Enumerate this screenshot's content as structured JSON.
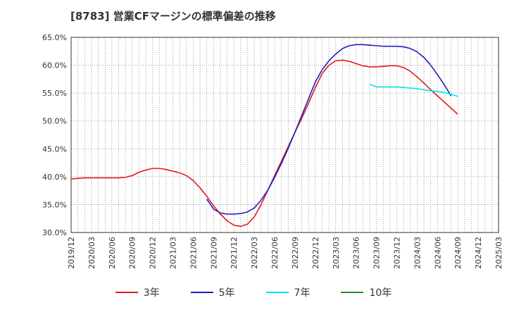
{
  "chart_data": {
    "type": "line",
    "title": "[8783]  営業CFマージンの標準偏差の推移",
    "xlabel": "",
    "ylabel": "",
    "ylim": [
      30,
      65
    ],
    "yticks": [
      "65.0%",
      "60.0%",
      "55.0%",
      "50.0%",
      "45.0%",
      "40.0%",
      "35.0%",
      "30.0%"
    ],
    "ytick_values": [
      65,
      60,
      55,
      50,
      45,
      40,
      35,
      30
    ],
    "x_start": "2019/12",
    "xticks": [
      "2019/12",
      "2020/03",
      "2020/06",
      "2020/09",
      "2020/12",
      "2021/03",
      "2021/06",
      "2021/09",
      "2021/12",
      "2022/03",
      "2022/06",
      "2022/09",
      "2022/12",
      "2023/03",
      "2023/06",
      "2023/09",
      "2023/12",
      "2024/03",
      "2024/06",
      "2024/09",
      "2024/12",
      "2025/03"
    ],
    "grid": true,
    "legend_position": "bottom",
    "series": [
      {
        "name": "3年",
        "color": "#e31a1c",
        "points": [
          [
            "2019/12",
            39.6
          ],
          [
            "2020/01",
            39.7
          ],
          [
            "2020/02",
            39.8
          ],
          [
            "2020/03",
            39.8
          ],
          [
            "2020/04",
            39.8
          ],
          [
            "2020/05",
            39.8
          ],
          [
            "2020/06",
            39.8
          ],
          [
            "2020/07",
            39.8
          ],
          [
            "2020/08",
            39.9
          ],
          [
            "2020/09",
            40.2
          ],
          [
            "2020/10",
            40.8
          ],
          [
            "2020/11",
            41.2
          ],
          [
            "2020/12",
            41.5
          ],
          [
            "2021/01",
            41.5
          ],
          [
            "2021/02",
            41.3
          ],
          [
            "2021/03",
            41.0
          ],
          [
            "2021/04",
            40.7
          ],
          [
            "2021/05",
            40.2
          ],
          [
            "2021/06",
            39.3
          ],
          [
            "2021/07",
            38.0
          ],
          [
            "2021/08",
            36.5
          ],
          [
            "2021/09",
            34.8
          ],
          [
            "2021/10",
            33.3
          ],
          [
            "2021/11",
            32.1
          ],
          [
            "2021/12",
            31.3
          ],
          [
            "2022/01",
            31.1
          ],
          [
            "2022/02",
            31.5
          ],
          [
            "2022/03",
            32.8
          ],
          [
            "2022/04",
            35.0
          ],
          [
            "2022/05",
            37.6
          ],
          [
            "2022/06",
            40.2
          ],
          [
            "2022/07",
            42.8
          ],
          [
            "2022/08",
            45.4
          ],
          [
            "2022/09",
            48.0
          ],
          [
            "2022/10",
            50.5
          ],
          [
            "2022/11",
            53.2
          ],
          [
            "2022/12",
            56.0
          ],
          [
            "2023/01",
            58.5
          ],
          [
            "2023/02",
            60.0
          ],
          [
            "2023/03",
            60.8
          ],
          [
            "2023/04",
            60.9
          ],
          [
            "2023/05",
            60.7
          ],
          [
            "2023/06",
            60.3
          ],
          [
            "2023/07",
            59.9
          ],
          [
            "2023/08",
            59.7
          ],
          [
            "2023/09",
            59.7
          ],
          [
            "2023/10",
            59.8
          ],
          [
            "2023/11",
            59.9
          ],
          [
            "2023/12",
            59.9
          ],
          [
            "2024/01",
            59.6
          ],
          [
            "2024/02",
            58.9
          ],
          [
            "2024/03",
            57.9
          ],
          [
            "2024/04",
            56.8
          ],
          [
            "2024/05",
            55.6
          ],
          [
            "2024/06",
            54.5
          ],
          [
            "2024/07",
            53.4
          ],
          [
            "2024/08",
            52.3
          ],
          [
            "2024/09",
            51.2
          ]
        ]
      },
      {
        "name": "5年",
        "color": "#1f1fbf",
        "points": [
          [
            "2021/08",
            36.0
          ],
          [
            "2021/09",
            34.2
          ],
          [
            "2021/10",
            33.5
          ],
          [
            "2021/11",
            33.3
          ],
          [
            "2021/12",
            33.3
          ],
          [
            "2022/01",
            33.4
          ],
          [
            "2022/02",
            33.7
          ],
          [
            "2022/03",
            34.4
          ],
          [
            "2022/04",
            35.8
          ],
          [
            "2022/05",
            37.6
          ],
          [
            "2022/06",
            39.9
          ],
          [
            "2022/07",
            42.4
          ],
          [
            "2022/08",
            45.1
          ],
          [
            "2022/09",
            48.0
          ],
          [
            "2022/10",
            51.0
          ],
          [
            "2022/11",
            54.0
          ],
          [
            "2022/12",
            57.0
          ],
          [
            "2023/01",
            59.2
          ],
          [
            "2023/02",
            60.8
          ],
          [
            "2023/03",
            62.0
          ],
          [
            "2023/04",
            63.0
          ],
          [
            "2023/05",
            63.5
          ],
          [
            "2023/06",
            63.7
          ],
          [
            "2023/07",
            63.7
          ],
          [
            "2023/08",
            63.6
          ],
          [
            "2023/09",
            63.5
          ],
          [
            "2023/10",
            63.4
          ],
          [
            "2023/11",
            63.4
          ],
          [
            "2023/12",
            63.4
          ],
          [
            "2024/01",
            63.3
          ],
          [
            "2024/02",
            63.0
          ],
          [
            "2024/03",
            62.4
          ],
          [
            "2024/04",
            61.4
          ],
          [
            "2024/05",
            60.0
          ],
          [
            "2024/06",
            58.3
          ],
          [
            "2024/07",
            56.5
          ],
          [
            "2024/08",
            54.5
          ]
        ]
      },
      {
        "name": "7年",
        "color": "#00e5ee",
        "points": [
          [
            "2023/08",
            56.6
          ],
          [
            "2023/09",
            56.1
          ],
          [
            "2023/10",
            56.1
          ],
          [
            "2023/11",
            56.1
          ],
          [
            "2023/12",
            56.1
          ],
          [
            "2024/01",
            56.0
          ],
          [
            "2024/02",
            55.9
          ],
          [
            "2024/03",
            55.8
          ],
          [
            "2024/04",
            55.6
          ],
          [
            "2024/05",
            55.4
          ],
          [
            "2024/06",
            55.3
          ],
          [
            "2024/07",
            55.1
          ],
          [
            "2024/08",
            54.8
          ],
          [
            "2024/09",
            54.4
          ]
        ]
      },
      {
        "name": "10年",
        "color": "#228b22",
        "points": []
      }
    ]
  }
}
